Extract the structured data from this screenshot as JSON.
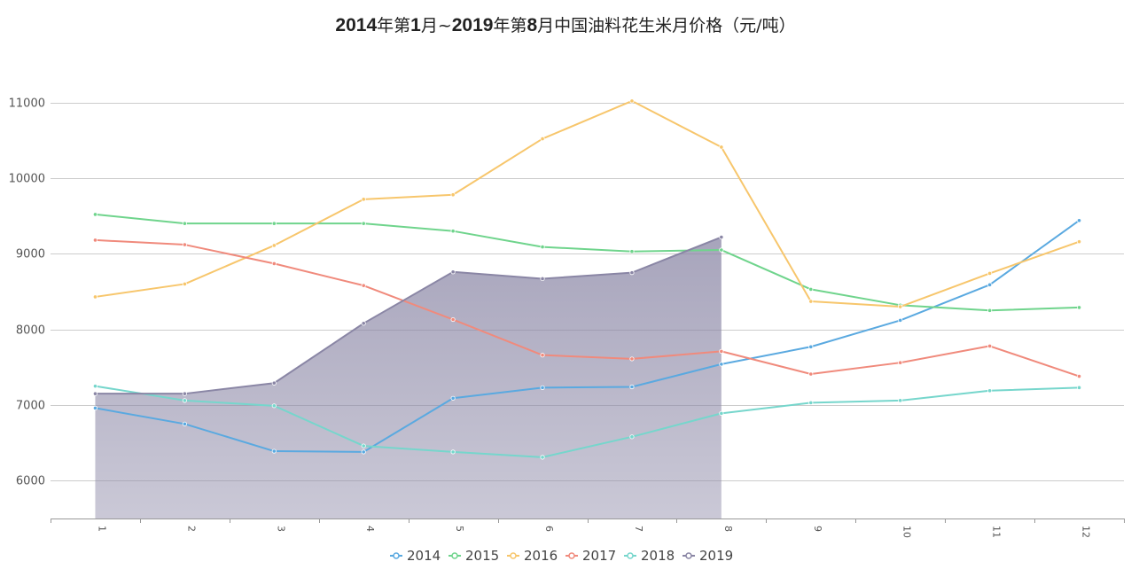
{
  "title": "2014年第1月~2019年第8月中国油料花生米月价格（元/吨）",
  "title_segments": [
    {
      "text": "2014",
      "bold": true
    },
    {
      "text": "年第",
      "bold": false
    },
    {
      "text": "1",
      "bold": true
    },
    {
      "text": "月~",
      "bold": false
    },
    {
      "text": "2019",
      "bold": true
    },
    {
      "text": "年第",
      "bold": false
    },
    {
      "text": "8",
      "bold": true
    },
    {
      "text": "月中国油料花生米月价格（元/吨）",
      "bold": false
    }
  ],
  "chart_data": {
    "type": "line",
    "title": "2014年第1月~2019年第8月中国油料花生米月价格（元/吨）",
    "xlabel": "",
    "ylabel": "",
    "categories": [
      "1",
      "2",
      "3",
      "4",
      "5",
      "6",
      "7",
      "8",
      "9",
      "10",
      "11",
      "12"
    ],
    "ylim": [
      5500,
      11300
    ],
    "yticks": [
      6000,
      7000,
      8000,
      9000,
      10000,
      11000
    ],
    "grid": true,
    "legend_position": "bottom-center",
    "series": [
      {
        "name": "2014",
        "color": "#5aa9e0",
        "area": false,
        "values": [
          6960,
          6750,
          6390,
          6380,
          7090,
          7230,
          7240,
          7540,
          7770,
          8120,
          8590,
          9440
        ]
      },
      {
        "name": "2015",
        "color": "#6fd48c",
        "area": false,
        "values": [
          9520,
          9400,
          9400,
          9400,
          9300,
          9090,
          9030,
          9050,
          8530,
          8320,
          8250,
          8290
        ]
      },
      {
        "name": "2016",
        "color": "#f7c66c",
        "area": false,
        "values": [
          8430,
          8600,
          9110,
          9720,
          9780,
          10520,
          11020,
          10410,
          8370,
          8300,
          8740,
          9160
        ]
      },
      {
        "name": "2017",
        "color": "#f08a7c",
        "area": false,
        "values": [
          9180,
          9120,
          8870,
          8580,
          8130,
          7660,
          7610,
          7710,
          7410,
          7560,
          7780,
          7380
        ]
      },
      {
        "name": "2018",
        "color": "#76d6cc",
        "area": false,
        "values": [
          7250,
          7060,
          6990,
          6460,
          6380,
          6310,
          6580,
          6890,
          7030,
          7060,
          7190,
          7230
        ]
      },
      {
        "name": "2019",
        "color": "#8a86a5",
        "area": true,
        "values": [
          7150,
          7150,
          7290,
          8080,
          8760,
          8670,
          8750,
          9220,
          null,
          null,
          null,
          null
        ]
      }
    ]
  }
}
